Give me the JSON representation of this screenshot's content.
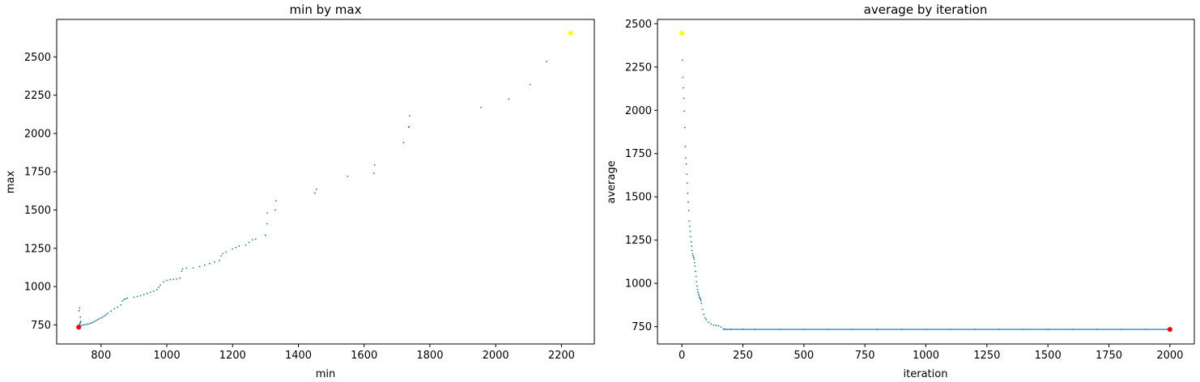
{
  "chart_data": [
    {
      "type": "scatter",
      "title": "min by max",
      "xlabel": "min",
      "ylabel": "max",
      "xlim": [
        665,
        2300
      ],
      "ylim": [
        625,
        2745
      ],
      "xticks": [
        800,
        1000,
        1200,
        1400,
        1600,
        1800,
        2000,
        2200
      ],
      "yticks": [
        750,
        1000,
        1250,
        1500,
        1750,
        2000,
        2250,
        2500
      ],
      "series_color": "#1f77b4",
      "points": [
        [
          732,
          735
        ],
        [
          733,
          740
        ],
        [
          734,
          748
        ],
        [
          735,
          755
        ],
        [
          736,
          760
        ],
        [
          737,
          766
        ],
        [
          738,
          772
        ],
        [
          733,
          842
        ],
        [
          735,
          860
        ],
        [
          737,
          800
        ],
        [
          740,
          745
        ],
        [
          745,
          748
        ],
        [
          750,
          750
        ],
        [
          755,
          752
        ],
        [
          760,
          755
        ],
        [
          765,
          758
        ],
        [
          770,
          762
        ],
        [
          775,
          766
        ],
        [
          780,
          772
        ],
        [
          785,
          778
        ],
        [
          790,
          784
        ],
        [
          795,
          790
        ],
        [
          800,
          795
        ],
        [
          805,
          800
        ],
        [
          810,
          808
        ],
        [
          815,
          815
        ],
        [
          820,
          825
        ],
        [
          830,
          840
        ],
        [
          840,
          855
        ],
        [
          850,
          865
        ],
        [
          860,
          880
        ],
        [
          865,
          905
        ],
        [
          870,
          915
        ],
        [
          875,
          920
        ],
        [
          880,
          925
        ],
        [
          900,
          930
        ],
        [
          910,
          935
        ],
        [
          920,
          940
        ],
        [
          930,
          948
        ],
        [
          940,
          955
        ],
        [
          950,
          962
        ],
        [
          960,
          970
        ],
        [
          970,
          980
        ],
        [
          975,
          995
        ],
        [
          980,
          1010
        ],
        [
          990,
          1030
        ],
        [
          1000,
          1040
        ],
        [
          1010,
          1045
        ],
        [
          1020,
          1048
        ],
        [
          1030,
          1050
        ],
        [
          1040,
          1055
        ],
        [
          1045,
          1100
        ],
        [
          1048,
          1115
        ],
        [
          1060,
          1120
        ],
        [
          1080,
          1122
        ],
        [
          1100,
          1130
        ],
        [
          1115,
          1140
        ],
        [
          1130,
          1150
        ],
        [
          1145,
          1160
        ],
        [
          1160,
          1170
        ],
        [
          1165,
          1200
        ],
        [
          1170,
          1215
        ],
        [
          1180,
          1225
        ],
        [
          1200,
          1245
        ],
        [
          1210,
          1255
        ],
        [
          1220,
          1265
        ],
        [
          1240,
          1270
        ],
        [
          1250,
          1290
        ],
        [
          1260,
          1305
        ],
        [
          1270,
          1310
        ],
        [
          1300,
          1335
        ],
        [
          1305,
          1410
        ],
        [
          1306,
          1480
        ],
        [
          1330,
          1500
        ],
        [
          1332,
          1560
        ],
        [
          1450,
          1610
        ],
        [
          1455,
          1635
        ],
        [
          1550,
          1720
        ],
        [
          1630,
          1740
        ],
        [
          1632,
          1795
        ],
        [
          1720,
          1940
        ],
        [
          1735,
          2040
        ],
        [
          1737,
          2045
        ],
        [
          1738,
          2115
        ],
        [
          1955,
          2170
        ],
        [
          2040,
          2225
        ],
        [
          2105,
          2320
        ],
        [
          2155,
          2470
        ]
      ],
      "best_point": [
        732,
        735
      ],
      "best_color": "#ff0000",
      "start_point": [
        2228,
        2655
      ],
      "start_color": "#ffff00"
    },
    {
      "type": "scatter",
      "title": "average by iteration",
      "xlabel": "iteration",
      "ylabel": "average",
      "xlim": [
        -100,
        2100
      ],
      "ylim": [
        650,
        2525
      ],
      "xticks": [
        0,
        250,
        500,
        750,
        1000,
        1250,
        1500,
        1750,
        2000
      ],
      "yticks": [
        750,
        1000,
        1250,
        1500,
        1750,
        2000,
        2250,
        2500
      ],
      "series_color": "#1f77b4",
      "points": [
        [
          2,
          2290
        ],
        [
          4,
          2190
        ],
        [
          6,
          2130
        ],
        [
          8,
          2070
        ],
        [
          10,
          1995
        ],
        [
          12,
          1900
        ],
        [
          14,
          1790
        ],
        [
          16,
          1725
        ],
        [
          18,
          1690
        ],
        [
          20,
          1630
        ],
        [
          22,
          1580
        ],
        [
          24,
          1520
        ],
        [
          26,
          1470
        ],
        [
          28,
          1420
        ],
        [
          30,
          1360
        ],
        [
          32,
          1330
        ],
        [
          34,
          1300
        ],
        [
          36,
          1270
        ],
        [
          38,
          1240
        ],
        [
          40,
          1215
        ],
        [
          42,
          1190
        ],
        [
          44,
          1170
        ],
        [
          46,
          1160
        ],
        [
          48,
          1150
        ],
        [
          50,
          1140
        ],
        [
          52,
          1120
        ],
        [
          54,
          1100
        ],
        [
          56,
          1070
        ],
        [
          58,
          1040
        ],
        [
          60,
          1010
        ],
        [
          62,
          985
        ],
        [
          64,
          965
        ],
        [
          66,
          950
        ],
        [
          68,
          940
        ],
        [
          70,
          930
        ],
        [
          72,
          920
        ],
        [
          74,
          915
        ],
        [
          76,
          908
        ],
        [
          78,
          900
        ],
        [
          80,
          885
        ],
        [
          85,
          850
        ],
        [
          90,
          820
        ],
        [
          95,
          800
        ],
        [
          100,
          790
        ],
        [
          110,
          775
        ],
        [
          120,
          765
        ],
        [
          130,
          760
        ],
        [
          140,
          757
        ],
        [
          150,
          755
        ],
        [
          160,
          748
        ],
        [
          170,
          738
        ],
        [
          180,
          735
        ],
        [
          200,
          735
        ],
        [
          250,
          735
        ],
        [
          300,
          734
        ],
        [
          400,
          734
        ],
        [
          500,
          734
        ],
        [
          600,
          734
        ],
        [
          700,
          734
        ],
        [
          800,
          734
        ],
        [
          900,
          734
        ],
        [
          1000,
          734
        ],
        [
          1100,
          734
        ],
        [
          1200,
          734
        ],
        [
          1300,
          734
        ],
        [
          1400,
          734
        ],
        [
          1500,
          734
        ],
        [
          1600,
          734
        ],
        [
          1700,
          734
        ],
        [
          1800,
          734
        ],
        [
          1900,
          734
        ],
        [
          1990,
          734
        ]
      ],
      "flat_line": {
        "from": 170,
        "to": 2000,
        "value": 734
      },
      "best_point": [
        2000,
        734
      ],
      "best_color": "#ff0000",
      "start_point": [
        0,
        2445
      ],
      "start_color": "#ffff00"
    }
  ]
}
